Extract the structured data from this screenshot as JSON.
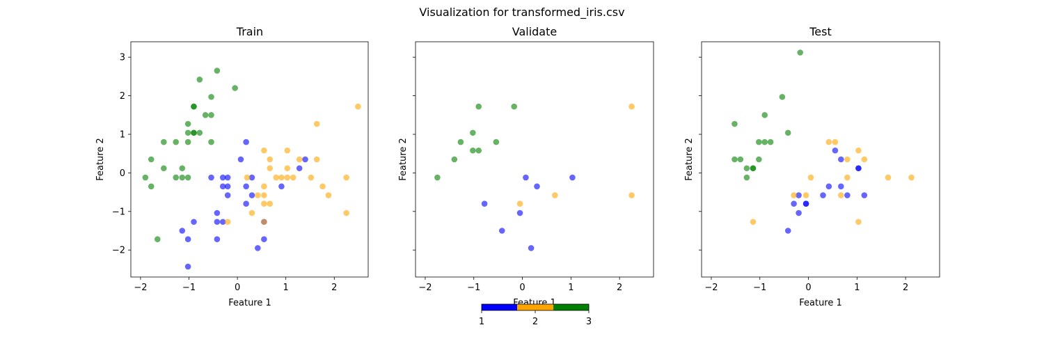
{
  "figure": {
    "suptitle": "Visualization for transformed_iris.csv"
  },
  "colorbar": {
    "colors": [
      "#0000ff",
      "#ffa500",
      "#008000"
    ],
    "ticks": [
      "1",
      "2",
      "3"
    ]
  },
  "chart_data": [
    {
      "type": "scatter",
      "title": "Train",
      "xlabel": "Feature 1",
      "ylabel": "Feature 2",
      "xlim": [
        -2.2,
        2.7
      ],
      "ylim": [
        -2.7,
        3.4
      ],
      "xticks": [
        -2,
        -1,
        0,
        1,
        2
      ],
      "yticks": [
        -2,
        -1,
        0,
        1,
        2,
        3
      ],
      "grid": false,
      "class_colors": {
        "1": "#0000ff",
        "2": "#ffa500",
        "3": "#008000"
      },
      "points": [
        [
          -1.9,
          -0.12,
          3
        ],
        [
          -1.78,
          0.35,
          3
        ],
        [
          -1.78,
          -0.35,
          3
        ],
        [
          -1.65,
          -1.72,
          3
        ],
        [
          -1.52,
          0.8,
          3
        ],
        [
          -1.52,
          0.12,
          3
        ],
        [
          -1.27,
          0.8,
          3
        ],
        [
          -1.27,
          -0.12,
          3
        ],
        [
          -1.14,
          0.12,
          3
        ],
        [
          -1.14,
          -0.12,
          3
        ],
        [
          -1.02,
          1.27,
          3
        ],
        [
          -1.02,
          1.04,
          3
        ],
        [
          -1.02,
          0.8,
          3
        ],
        [
          -1.02,
          -0.12,
          3
        ],
        [
          -0.9,
          1.72,
          3
        ],
        [
          -0.9,
          1.72,
          3
        ],
        [
          -0.9,
          1.04,
          3
        ],
        [
          -0.9,
          1.04,
          3
        ],
        [
          -0.78,
          2.42,
          3
        ],
        [
          -0.78,
          1.04,
          3
        ],
        [
          -0.66,
          1.5,
          3
        ],
        [
          -0.54,
          1.97,
          3
        ],
        [
          -0.54,
          1.5,
          3
        ],
        [
          -0.54,
          0.8,
          3
        ],
        [
          -0.42,
          2.65,
          3
        ],
        [
          -0.05,
          2.2,
          3
        ],
        [
          -1.02,
          -2.43,
          1
        ],
        [
          -1.14,
          -1.5,
          1
        ],
        [
          -1.02,
          -1.72,
          1
        ],
        [
          -0.9,
          -1.27,
          1
        ],
        [
          -0.54,
          -0.12,
          1
        ],
        [
          -0.42,
          -1.04,
          1
        ],
        [
          -0.42,
          -1.27,
          1
        ],
        [
          -0.42,
          -1.72,
          1
        ],
        [
          -0.3,
          -0.12,
          1
        ],
        [
          -0.3,
          -0.35,
          1
        ],
        [
          -0.3,
          -1.27,
          1
        ],
        [
          -0.2,
          -0.12,
          1
        ],
        [
          -0.2,
          -0.35,
          1
        ],
        [
          -0.2,
          -0.58,
          1
        ],
        [
          0.07,
          0.35,
          1
        ],
        [
          0.18,
          0.8,
          1
        ],
        [
          0.18,
          -0.35,
          1
        ],
        [
          0.18,
          -0.8,
          1
        ],
        [
          0.3,
          -0.12,
          1
        ],
        [
          0.3,
          -0.58,
          1
        ],
        [
          0.42,
          -1.95,
          1
        ],
        [
          0.55,
          -1.27,
          1
        ],
        [
          0.55,
          -1.72,
          1
        ],
        [
          0.91,
          -0.35,
          1
        ],
        [
          1.28,
          0.12,
          1
        ],
        [
          1.4,
          0.35,
          1
        ],
        [
          -0.2,
          -1.27,
          2
        ],
        [
          0.2,
          -0.12,
          2
        ],
        [
          0.3,
          -1.04,
          2
        ],
        [
          0.42,
          -0.58,
          2
        ],
        [
          0.55,
          0.58,
          2
        ],
        [
          0.55,
          -0.35,
          2
        ],
        [
          0.55,
          -0.58,
          2
        ],
        [
          0.55,
          -0.8,
          2
        ],
        [
          0.55,
          -1.27,
          2
        ],
        [
          0.67,
          0.35,
          2
        ],
        [
          0.67,
          0.12,
          2
        ],
        [
          0.67,
          -0.8,
          2
        ],
        [
          0.8,
          -0.12,
          2
        ],
        [
          0.91,
          -0.12,
          2
        ],
        [
          1.03,
          0.58,
          2
        ],
        [
          1.03,
          0.12,
          2
        ],
        [
          1.03,
          -0.12,
          2
        ],
        [
          1.15,
          -0.12,
          2
        ],
        [
          1.28,
          0.35,
          2
        ],
        [
          1.52,
          -0.12,
          2
        ],
        [
          1.64,
          1.27,
          2
        ],
        [
          1.64,
          0.35,
          2
        ],
        [
          1.76,
          -0.35,
          2
        ],
        [
          1.88,
          -0.58,
          2
        ],
        [
          2.25,
          -0.12,
          2
        ],
        [
          2.25,
          -1.04,
          2
        ],
        [
          2.49,
          1.72,
          2
        ]
      ]
    },
    {
      "type": "scatter",
      "title": "Validate",
      "xlabel": "Feature 1",
      "ylabel": "Feature 2",
      "xlim": [
        -2.2,
        2.7
      ],
      "ylim": [
        -2.7,
        3.4
      ],
      "xticks": [
        -2,
        -1,
        0,
        1,
        2
      ],
      "yticks": [
        -2,
        -1,
        0,
        1,
        2,
        3
      ],
      "grid": false,
      "class_colors": {
        "1": "#0000ff",
        "2": "#ffa500",
        "3": "#008000"
      },
      "points": [
        [
          -1.75,
          -0.12,
          3
        ],
        [
          -1.4,
          0.35,
          3
        ],
        [
          -1.27,
          0.8,
          3
        ],
        [
          -1.02,
          1.04,
          3
        ],
        [
          -1.02,
          0.58,
          3
        ],
        [
          -0.9,
          1.72,
          3
        ],
        [
          -0.9,
          0.58,
          3
        ],
        [
          -0.54,
          0.8,
          3
        ],
        [
          -0.17,
          1.72,
          3
        ],
        [
          -0.78,
          -0.8,
          1
        ],
        [
          -0.42,
          -1.5,
          1
        ],
        [
          -0.05,
          -1.04,
          1
        ],
        [
          0.07,
          -0.12,
          1
        ],
        [
          0.18,
          -1.95,
          1
        ],
        [
          0.3,
          -0.35,
          1
        ],
        [
          1.03,
          -0.12,
          1
        ],
        [
          -0.05,
          -0.8,
          2
        ],
        [
          0.67,
          -0.58,
          2
        ],
        [
          2.25,
          1.72,
          2
        ],
        [
          2.25,
          -0.58,
          2
        ]
      ]
    },
    {
      "type": "scatter",
      "title": "Test",
      "xlabel": "Feature 1",
      "ylabel": "Feature 2",
      "xlim": [
        -2.2,
        2.7
      ],
      "ylim": [
        -2.7,
        3.4
      ],
      "xticks": [
        -2,
        -1,
        0,
        1,
        2
      ],
      "yticks": [
        -2,
        -1,
        0,
        1,
        2,
        3
      ],
      "grid": false,
      "class_colors": {
        "1": "#0000ff",
        "2": "#ffa500",
        "3": "#008000"
      },
      "points": [
        [
          -1.52,
          1.27,
          3
        ],
        [
          -1.52,
          0.35,
          3
        ],
        [
          -1.4,
          0.35,
          3
        ],
        [
          -1.27,
          0.12,
          3
        ],
        [
          -1.27,
          -0.12,
          3
        ],
        [
          -1.14,
          0.12,
          3
        ],
        [
          -1.14,
          0.12,
          3
        ],
        [
          -1.02,
          0.8,
          3
        ],
        [
          -1.02,
          0.35,
          3
        ],
        [
          -0.9,
          1.5,
          3
        ],
        [
          -0.9,
          0.8,
          3
        ],
        [
          -0.78,
          0.8,
          3
        ],
        [
          -0.54,
          1.97,
          3
        ],
        [
          -0.42,
          1.04,
          3
        ],
        [
          -0.17,
          3.12,
          3
        ],
        [
          -0.42,
          -1.5,
          1
        ],
        [
          -0.3,
          -0.8,
          1
        ],
        [
          -0.2,
          -0.58,
          1
        ],
        [
          -0.2,
          -1.04,
          1
        ],
        [
          -0.05,
          -0.8,
          1
        ],
        [
          -0.05,
          -0.8,
          1
        ],
        [
          0.3,
          -0.58,
          1
        ],
        [
          0.42,
          -0.35,
          1
        ],
        [
          0.55,
          0.58,
          1
        ],
        [
          0.67,
          0.35,
          1
        ],
        [
          0.67,
          -0.35,
          1
        ],
        [
          0.8,
          -0.58,
          1
        ],
        [
          1.03,
          0.12,
          1
        ],
        [
          1.03,
          0.12,
          1
        ],
        [
          1.15,
          -0.58,
          1
        ],
        [
          -1.14,
          -1.27,
          2
        ],
        [
          -0.3,
          -0.58,
          2
        ],
        [
          -0.05,
          -0.58,
          2
        ],
        [
          0.05,
          -0.12,
          2
        ],
        [
          0.42,
          0.8,
          2
        ],
        [
          0.55,
          0.8,
          2
        ],
        [
          0.67,
          -0.58,
          2
        ],
        [
          0.8,
          0.35,
          2
        ],
        [
          0.8,
          -0.12,
          2
        ],
        [
          1.03,
          0.58,
          2
        ],
        [
          1.03,
          -1.27,
          2
        ],
        [
          1.15,
          0.35,
          2
        ],
        [
          1.64,
          -0.12,
          2
        ],
        [
          2.12,
          -0.12,
          2
        ]
      ]
    }
  ]
}
